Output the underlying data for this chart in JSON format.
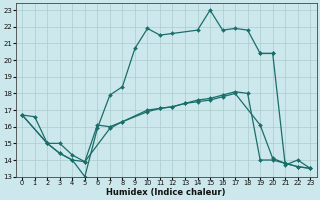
{
  "background_color": "#cce8ec",
  "grid_color": "#aacccc",
  "line_color": "#1a6e6a",
  "xlabel": "Humidex (Indice chaleur)",
  "xlim": [
    -0.5,
    23.5
  ],
  "ylim": [
    13,
    23.4
  ],
  "yticks": [
    13,
    14,
    15,
    16,
    17,
    18,
    19,
    20,
    21,
    22,
    23
  ],
  "xticks": [
    0,
    1,
    2,
    3,
    4,
    5,
    6,
    7,
    8,
    9,
    10,
    11,
    12,
    13,
    14,
    15,
    16,
    17,
    18,
    19,
    20,
    21,
    22,
    23
  ],
  "line1_x": [
    0,
    2,
    3,
    4,
    5,
    6,
    7,
    8,
    10,
    11,
    12,
    13,
    14,
    15,
    16,
    17,
    19,
    20,
    21,
    22,
    23
  ],
  "line1_y": [
    16.7,
    15.0,
    15.0,
    14.3,
    13.9,
    16.1,
    16.0,
    16.3,
    17.0,
    17.1,
    17.2,
    17.4,
    17.5,
    17.6,
    17.8,
    18.0,
    16.1,
    14.1,
    13.8,
    13.6,
    13.5
  ],
  "line2_x": [
    0,
    2,
    3,
    4,
    5,
    7,
    8,
    10,
    11,
    12,
    13,
    14,
    15,
    16,
    17,
    18,
    19,
    20,
    21,
    22,
    23
  ],
  "line2_y": [
    16.7,
    15.0,
    14.4,
    14.0,
    13.9,
    15.9,
    16.3,
    16.9,
    17.1,
    17.2,
    17.4,
    17.6,
    17.7,
    17.9,
    18.1,
    18.0,
    14.0,
    14.0,
    13.8,
    13.6,
    13.5
  ],
  "line3_x": [
    0,
    1,
    2,
    3,
    4,
    5,
    6,
    7,
    8,
    9,
    10,
    11,
    12,
    14,
    15,
    16,
    17,
    18,
    19,
    20
  ],
  "line3_y": [
    16.7,
    16.6,
    15.0,
    14.4,
    14.0,
    13.0,
    15.9,
    17.9,
    18.4,
    20.7,
    21.9,
    21.5,
    21.6,
    21.8,
    23.0,
    21.8,
    21.9,
    21.8,
    20.4,
    20.4
  ],
  "line4_x": [
    19,
    20,
    21,
    22,
    23
  ],
  "line4_y": [
    20.4,
    20.4,
    13.7,
    14.0,
    13.5
  ]
}
